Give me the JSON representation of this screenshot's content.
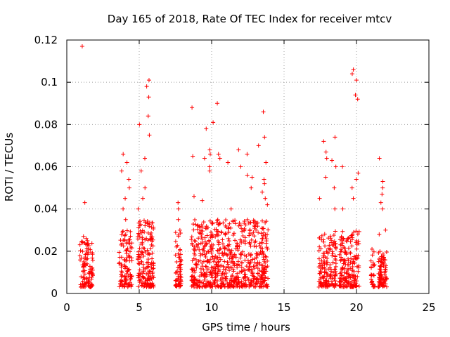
{
  "chart_data": {
    "type": "scatter",
    "title": "Day 165 of 2018, Rate Of TEC Index for receiver mtcv",
    "xlabel": "GPS time / hours",
    "ylabel": "ROTI / TECUs",
    "xlim": [
      0,
      25
    ],
    "ylim": [
      0,
      0.12
    ],
    "xticks": [
      0,
      5,
      10,
      15,
      20,
      25
    ],
    "xtick_labels": [
      "0",
      "5",
      "10",
      "15",
      "20",
      "25"
    ],
    "yticks": [
      0,
      0.02,
      0.04,
      0.06,
      0.08,
      0.1,
      0.12
    ],
    "ytick_labels": [
      "0",
      "0.02",
      "0.04",
      "0.06",
      "0.08",
      "0.1",
      "0.12"
    ],
    "grid": true,
    "marker": "+",
    "color": "#ff0000",
    "clusters": [
      {
        "x_start": 0.9,
        "x_end": 1.8,
        "count": 110,
        "base_max": 0.025,
        "spikes": [
          0.117,
          0.043,
          0.027,
          0.026
        ]
      },
      {
        "x_start": 3.6,
        "x_end": 4.5,
        "count": 110,
        "base_max": 0.03,
        "spikes": [
          0.066,
          0.062,
          0.058,
          0.054,
          0.05,
          0.045,
          0.04,
          0.035
        ]
      },
      {
        "x_start": 4.9,
        "x_end": 6.0,
        "count": 170,
        "base_max": 0.035,
        "spikes": [
          0.101,
          0.098,
          0.093,
          0.084,
          0.08,
          0.075,
          0.064,
          0.058,
          0.05,
          0.045,
          0.04
        ]
      },
      {
        "x_start": 7.5,
        "x_end": 7.9,
        "count": 60,
        "base_max": 0.03,
        "spikes": [
          0.043,
          0.04,
          0.035
        ]
      },
      {
        "x_start": 8.6,
        "x_end": 13.9,
        "count": 700,
        "base_max": 0.035,
        "spikes": [
          0.081,
          0.07,
          0.068,
          0.066,
          0.065,
          0.09,
          0.088,
          0.086,
          0.078,
          0.066,
          0.064,
          0.062,
          0.06,
          0.058,
          0.056,
          0.054,
          0.052,
          0.05,
          0.048,
          0.046,
          0.045,
          0.044,
          0.042,
          0.04,
          0.074,
          0.068,
          0.066,
          0.064,
          0.062,
          0.06,
          0.055
        ]
      },
      {
        "x_start": 17.4,
        "x_end": 18.6,
        "count": 150,
        "base_max": 0.03,
        "spikes": [
          0.074,
          0.072,
          0.067,
          0.064,
          0.063,
          0.06,
          0.055,
          0.05,
          0.045,
          0.04
        ]
      },
      {
        "x_start": 18.8,
        "x_end": 20.2,
        "count": 180,
        "base_max": 0.03,
        "spikes": [
          0.106,
          0.104,
          0.101,
          0.094,
          0.092,
          0.06,
          0.057,
          0.054,
          0.05,
          0.045,
          0.04
        ]
      },
      {
        "x_start": 21.0,
        "x_end": 21.3,
        "count": 25,
        "base_max": 0.02,
        "spikes": [
          0.021
        ]
      },
      {
        "x_start": 21.5,
        "x_end": 22.1,
        "count": 90,
        "base_max": 0.02,
        "spikes": [
          0.064,
          0.053,
          0.05,
          0.047,
          0.043,
          0.04,
          0.03,
          0.028
        ]
      }
    ]
  }
}
